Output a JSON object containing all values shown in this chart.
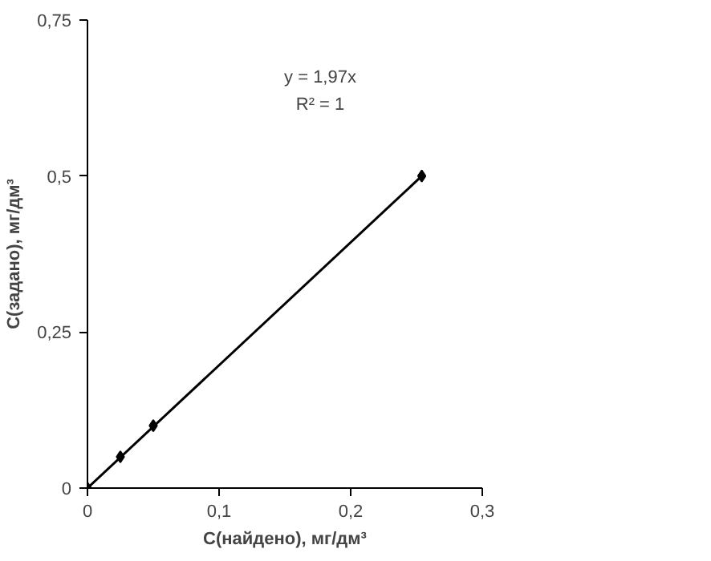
{
  "chart_data": {
    "type": "scatter",
    "xlabel": "C(найдено), мг/дм³",
    "ylabel": "С(задано), мг/дм³",
    "annotations": [
      "y = 1,97x",
      "R² = 1"
    ],
    "xlim": [
      0,
      0.3
    ],
    "ylim": [
      0,
      0.75
    ],
    "xticks": [
      0,
      {
        "value": 0.1,
        "label": "0,1"
      },
      {
        "value": 0.2,
        "label": "0,2"
      },
      {
        "value": 0.3,
        "label": "0,3"
      }
    ],
    "yticks": [
      0,
      {
        "value": 0.25,
        "label": "0,25"
      },
      {
        "value": 0.5,
        "label": "0,5"
      },
      {
        "value": 0.75,
        "label": "0,75"
      }
    ],
    "grid": false,
    "marker": "diamond",
    "series": [
      {
        "color": "#000000",
        "x": [
          0,
          0.025,
          0.05,
          0.254
        ],
        "values": [
          0,
          0.05,
          0.1,
          0.5
        ]
      },
      {
        "type": "line",
        "color": "#000000",
        "x": [
          0,
          0.254
        ],
        "values": [
          0,
          0.5
        ],
        "marker": "none",
        "line_style": "solid"
      }
    ]
  }
}
